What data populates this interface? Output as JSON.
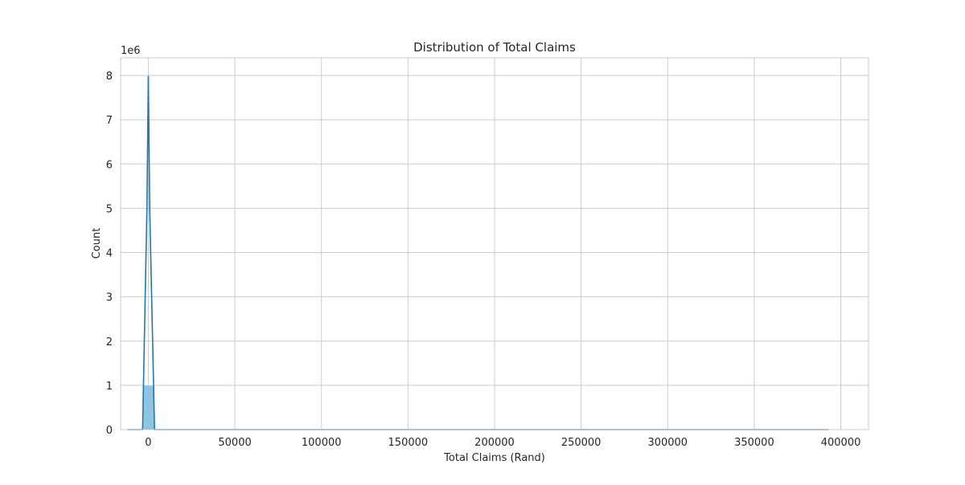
{
  "chart_data": {
    "type": "bar",
    "title": "Distribution of Total Claims",
    "xlabel": "Total Claims (Rand)",
    "ylabel": "Count",
    "y_offset_label": "1e6",
    "y_scale": 1000000,
    "xlim": [
      -16000,
      416000
    ],
    "ylim": [
      0,
      8400000
    ],
    "x_ticks": [
      0,
      50000,
      100000,
      150000,
      200000,
      250000,
      300000,
      350000,
      400000
    ],
    "x_tick_labels": [
      "0",
      "50000",
      "100000",
      "150000",
      "200000",
      "250000",
      "300000",
      "350000",
      "400000"
    ],
    "y_ticks": [
      0,
      1000000,
      2000000,
      3000000,
      4000000,
      5000000,
      6000000,
      7000000,
      8000000
    ],
    "y_tick_labels": [
      "0",
      "1",
      "2",
      "3",
      "4",
      "5",
      "6",
      "7",
      "8"
    ],
    "grid": true,
    "histogram": {
      "bins": [
        {
          "x0": -3300,
          "x1": 3600,
          "count": 1000000
        }
      ],
      "color": "#89c2e0"
    },
    "kde": {
      "color": "#1f77b4",
      "x": [
        -12000,
        -3300,
        -800,
        0,
        800,
        3600,
        10000,
        50000,
        100000,
        200000,
        300000,
        393000
      ],
      "y": [
        0,
        0,
        5000000,
        7980000,
        5000000,
        0,
        0,
        0,
        0,
        0,
        0,
        0
      ]
    }
  }
}
